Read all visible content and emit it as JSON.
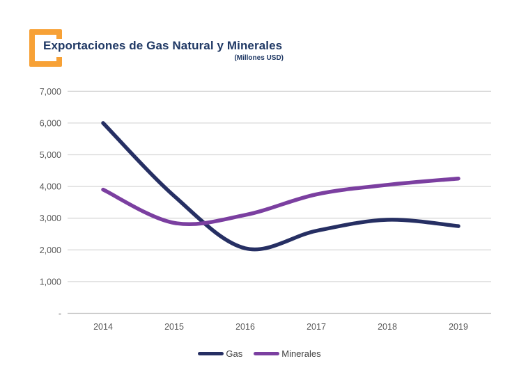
{
  "header": {
    "title": "Exportaciones de Gas Natural y Minerales",
    "subtitle": "(Millones USD)"
  },
  "colors": {
    "title_text": "#1F3864",
    "accent_orange": "#F7A136",
    "gas_line": "#262F63",
    "minerales_line": "#7B3FA0",
    "axis_text": "#595959",
    "gridline": "#D9D9D9",
    "axis_line": "#BFBFBF",
    "legend_text": "#3F3F3F"
  },
  "chart_data": {
    "type": "line",
    "title": "Exportaciones de Gas Natural y Minerales",
    "subtitle": "(Millones USD)",
    "categories": [
      "2014",
      "2015",
      "2016",
      "2017",
      "2018",
      "2019"
    ],
    "series": [
      {
        "name": "Gas",
        "color": "#262F63",
        "values": [
          6000,
          3700,
          2050,
          2600,
          2950,
          2750
        ]
      },
      {
        "name": "Minerales",
        "color": "#7B3FA0",
        "values": [
          3900,
          2850,
          3100,
          3750,
          4050,
          4250
        ]
      }
    ],
    "ylim": [
      0,
      7000
    ],
    "ytick_step": 1000,
    "ytick_labels": [
      "-",
      "1,000",
      "2,000",
      "3,000",
      "4,000",
      "5,000",
      "6,000",
      "7,000"
    ],
    "grid": true,
    "smooth": true,
    "legend_position": "bottom"
  }
}
